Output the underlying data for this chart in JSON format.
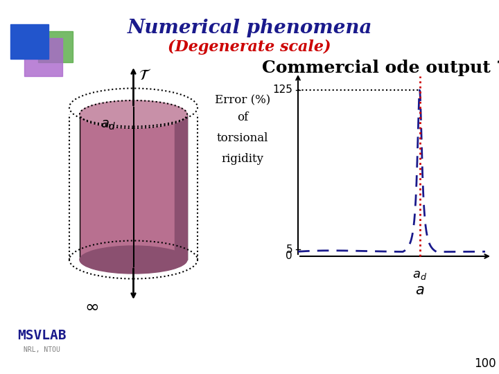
{
  "title": "Numerical phenomena",
  "subtitle": "(Degenerate scale)",
  "title_color": "#1a1a8c",
  "subtitle_color": "#cc0000",
  "commercial_text": "Commercial ode output ?",
  "commercial_color": "#000000",
  "ylabel_lines": [
    "Error (%)",
    "of",
    "torsional",
    "rigidity"
  ],
  "xlabel": "a",
  "xlabel_italic": true,
  "x_peak_label": "a_d",
  "y_tick_125": 125,
  "y_tick_5": 5,
  "y_tick_0": 0,
  "bg_color": "#ffffff",
  "curve_color": "#1a1a8c",
  "vline_color": "#cc0000",
  "hline_color": "#000000",
  "page_number": "100",
  "msvlab_color": "#1a1a8c"
}
